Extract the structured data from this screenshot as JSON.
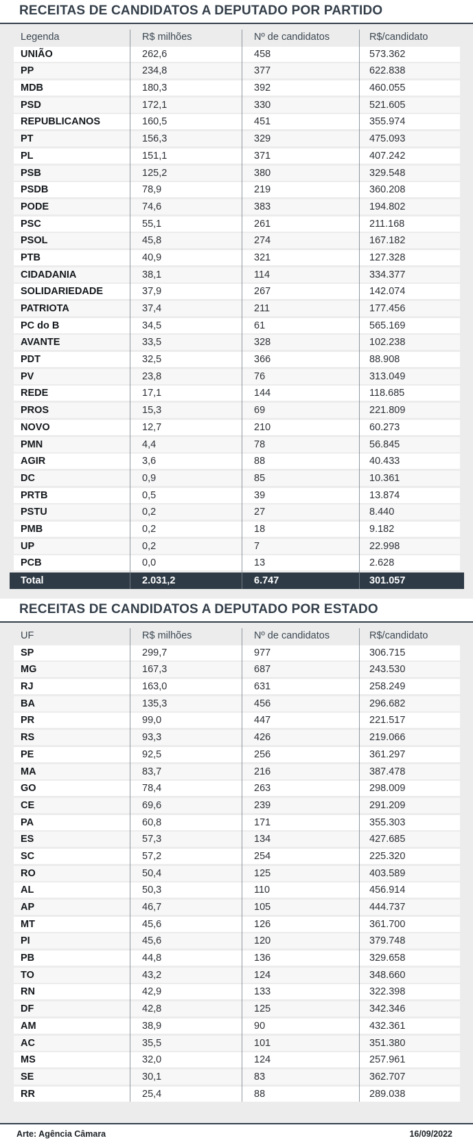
{
  "page": {
    "accent_color": "#343f4a",
    "total_row_color": "#2e3a46",
    "background_color": "#ececec"
  },
  "footer": {
    "credit": "Arte: Agência Câmara",
    "date": "16/09/2022"
  },
  "chart_data": [
    {
      "type": "table",
      "title": "RECEITAS DE CANDIDATOS A DEPUTADO POR PARTIDO",
      "columns": [
        "Legenda",
        "R$ milhões",
        "Nº de candidatos",
        "R$/candidato"
      ],
      "rows": [
        [
          "UNIÃO",
          "262,6",
          "458",
          "573.362"
        ],
        [
          "PP",
          "234,8",
          "377",
          "622.838"
        ],
        [
          "MDB",
          "180,3",
          "392",
          "460.055"
        ],
        [
          "PSD",
          "172,1",
          "330",
          "521.605"
        ],
        [
          "REPUBLICANOS",
          "160,5",
          "451",
          "355.974"
        ],
        [
          "PT",
          "156,3",
          "329",
          "475.093"
        ],
        [
          "PL",
          "151,1",
          "371",
          "407.242"
        ],
        [
          "PSB",
          "125,2",
          "380",
          "329.548"
        ],
        [
          "PSDB",
          "78,9",
          "219",
          "360.208"
        ],
        [
          "PODE",
          "74,6",
          "383",
          "194.802"
        ],
        [
          "PSC",
          "55,1",
          "261",
          "211.168"
        ],
        [
          "PSOL",
          "45,8",
          "274",
          "167.182"
        ],
        [
          "PTB",
          "40,9",
          "321",
          "127.328"
        ],
        [
          "CIDADANIA",
          "38,1",
          "114",
          "334.377"
        ],
        [
          "SOLIDARIEDADE",
          "37,9",
          "267",
          "142.074"
        ],
        [
          "PATRIOTA",
          "37,4",
          "211",
          "177.456"
        ],
        [
          "PC do B",
          "34,5",
          "61",
          "565.169"
        ],
        [
          "AVANTE",
          "33,5",
          "328",
          "102.238"
        ],
        [
          "PDT",
          "32,5",
          "366",
          "88.908"
        ],
        [
          "PV",
          "23,8",
          "76",
          "313.049"
        ],
        [
          "REDE",
          "17,1",
          "144",
          "118.685"
        ],
        [
          "PROS",
          "15,3",
          "69",
          "221.809"
        ],
        [
          "NOVO",
          "12,7",
          "210",
          "60.273"
        ],
        [
          "PMN",
          "4,4",
          "78",
          "56.845"
        ],
        [
          "AGIR",
          "3,6",
          "88",
          "40.433"
        ],
        [
          "DC",
          "0,9",
          "85",
          "10.361"
        ],
        [
          "PRTB",
          "0,5",
          "39",
          "13.874"
        ],
        [
          "PSTU",
          "0,2",
          "27",
          "8.440"
        ],
        [
          "PMB",
          "0,2",
          "18",
          "9.182"
        ],
        [
          "UP",
          "0,2",
          "7",
          "22.998"
        ],
        [
          "PCB",
          "0,0",
          "13",
          "2.628"
        ]
      ],
      "total_row": [
        "Total",
        "2.031,2",
        "6.747",
        "301.057"
      ]
    },
    {
      "type": "table",
      "title": "RECEITAS DE CANDIDATOS A DEPUTADO POR ESTADO",
      "columns": [
        "UF",
        "R$ milhões",
        "Nº de candidatos",
        "R$/candidato"
      ],
      "rows": [
        [
          "SP",
          "299,7",
          "977",
          "306.715"
        ],
        [
          "MG",
          "167,3",
          "687",
          "243.530"
        ],
        [
          "RJ",
          "163,0",
          "631",
          "258.249"
        ],
        [
          "BA",
          "135,3",
          "456",
          "296.682"
        ],
        [
          "PR",
          "99,0",
          "447",
          "221.517"
        ],
        [
          "RS",
          "93,3",
          "426",
          "219.066"
        ],
        [
          "PE",
          "92,5",
          "256",
          "361.297"
        ],
        [
          "MA",
          "83,7",
          "216",
          "387.478"
        ],
        [
          "GO",
          "78,4",
          "263",
          "298.009"
        ],
        [
          "CE",
          "69,6",
          "239",
          "291.209"
        ],
        [
          "PA",
          "60,8",
          "171",
          "355.303"
        ],
        [
          "ES",
          "57,3",
          "134",
          "427.685"
        ],
        [
          "SC",
          "57,2",
          "254",
          "225.320"
        ],
        [
          "RO",
          "50,4",
          "125",
          "403.589"
        ],
        [
          "AL",
          "50,3",
          "110",
          "456.914"
        ],
        [
          "AP",
          "46,7",
          "105",
          "444.737"
        ],
        [
          "MT",
          "45,6",
          "126",
          "361.700"
        ],
        [
          "PI",
          "45,6",
          "120",
          "379.748"
        ],
        [
          "PB",
          "44,8",
          "136",
          "329.658"
        ],
        [
          "TO",
          "43,2",
          "124",
          "348.660"
        ],
        [
          "RN",
          "42,9",
          "133",
          "322.398"
        ],
        [
          "DF",
          "42,8",
          "125",
          "342.346"
        ],
        [
          "AM",
          "38,9",
          "90",
          "432.361"
        ],
        [
          "AC",
          "35,5",
          "101",
          "351.380"
        ],
        [
          "MS",
          "32,0",
          "124",
          "257.961"
        ],
        [
          "SE",
          "30,1",
          "83",
          "362.707"
        ],
        [
          "RR",
          "25,4",
          "88",
          "289.038"
        ]
      ]
    }
  ]
}
